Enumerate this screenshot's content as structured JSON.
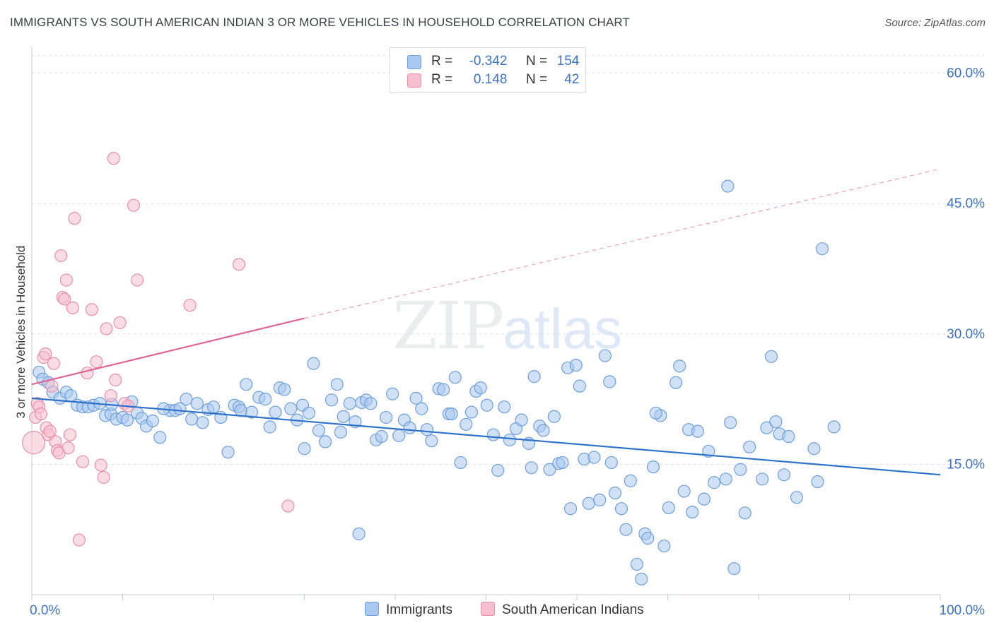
{
  "title": "IMMIGRANTS VS SOUTH AMERICAN INDIAN 3 OR MORE VEHICLES IN HOUSEHOLD CORRELATION CHART",
  "source": "Source: ZipAtlas.com",
  "watermark": {
    "zip": "ZIP",
    "atlas": "atlas"
  },
  "colors": {
    "immigrants_fill": "#a9c8ef",
    "immigrants_stroke": "#6f9fdb",
    "immigrants_line": "#2f72c9",
    "sai_fill": "#f6bfd0",
    "sai_stroke": "#e98fab",
    "sai_line": "#e06592",
    "axis_text": "#3a73c9",
    "grid": "#dde1e6"
  },
  "legend": {
    "rows": [
      {
        "r_label": "R =",
        "r_value": "-0.342",
        "n_label": "N =",
        "n_value": "154"
      },
      {
        "r_label": "R =",
        "r_value": "0.148",
        "n_label": "N =",
        "n_value": "42"
      }
    ]
  },
  "bottom_legend": [
    "Immigrants",
    "South American Indians"
  ],
  "chart_data": {
    "type": "scatter",
    "title": "IMMIGRANTS VS SOUTH AMERICAN INDIAN 3 OR MORE VEHICLES IN HOUSEHOLD CORRELATION CHART",
    "xlabel": "",
    "ylabel": "3 or more Vehicles in Household",
    "xlim": [
      0,
      100
    ],
    "ylim": [
      0,
      62
    ],
    "x_tick_labels": [
      "0.0%",
      "100.0%"
    ],
    "y_ticks": [
      15,
      30,
      45,
      60
    ],
    "y_tick_labels": [
      "15.0%",
      "30.0%",
      "45.0%",
      "60.0%"
    ],
    "grid": true,
    "legend_position": "top-center",
    "series": [
      {
        "name": "Immigrants",
        "r": -0.342,
        "n": 154,
        "trend": {
          "x0": 0,
          "y0": 22.6,
          "x1": 100,
          "y1": 13.8
        },
        "points": [
          [
            0.8,
            25.6
          ],
          [
            1.2,
            24.8
          ],
          [
            1.8,
            24.4
          ],
          [
            2.3,
            23.3
          ],
          [
            3.1,
            22.6
          ],
          [
            3.8,
            23.3
          ],
          [
            4.3,
            22.9
          ],
          [
            5.0,
            21.8
          ],
          [
            5.6,
            21.6
          ],
          [
            6.2,
            21.6
          ],
          [
            6.8,
            21.8
          ],
          [
            7.5,
            22.0
          ],
          [
            8.1,
            20.6
          ],
          [
            8.7,
            20.8
          ],
          [
            9.3,
            20.2
          ],
          [
            10.0,
            20.4
          ],
          [
            11.0,
            22.2
          ],
          [
            11.6,
            20.9
          ],
          [
            12.1,
            20.3
          ],
          [
            12.6,
            19.4
          ],
          [
            13.3,
            20.0
          ],
          [
            14.1,
            18.1
          ],
          [
            15.2,
            21.2
          ],
          [
            15.8,
            21.2
          ],
          [
            16.3,
            21.4
          ],
          [
            17.0,
            22.5
          ],
          [
            17.6,
            20.2
          ],
          [
            18.2,
            22.0
          ],
          [
            18.8,
            19.8
          ],
          [
            19.4,
            21.3
          ],
          [
            20.0,
            21.6
          ],
          [
            20.8,
            20.4
          ],
          [
            21.6,
            16.4
          ],
          [
            22.3,
            21.8
          ],
          [
            22.8,
            21.6
          ],
          [
            23.6,
            24.2
          ],
          [
            24.2,
            21.0
          ],
          [
            25.0,
            22.7
          ],
          [
            25.7,
            22.5
          ],
          [
            26.2,
            19.3
          ],
          [
            26.8,
            21.0
          ],
          [
            27.3,
            23.8
          ],
          [
            27.8,
            23.6
          ],
          [
            28.5,
            21.4
          ],
          [
            29.2,
            20.1
          ],
          [
            29.8,
            21.8
          ],
          [
            30.5,
            20.9
          ],
          [
            31.0,
            26.6
          ],
          [
            31.6,
            18.9
          ],
          [
            32.3,
            17.6
          ],
          [
            33.0,
            22.4
          ],
          [
            33.6,
            24.2
          ],
          [
            34.3,
            20.5
          ],
          [
            35.0,
            22.0
          ],
          [
            35.6,
            19.9
          ],
          [
            36.3,
            22.1
          ],
          [
            36.8,
            22.4
          ],
          [
            37.3,
            22.0
          ],
          [
            37.9,
            17.8
          ],
          [
            38.5,
            18.2
          ],
          [
            39.0,
            20.4
          ],
          [
            39.7,
            23.1
          ],
          [
            40.4,
            18.3
          ],
          [
            41.0,
            20.1
          ],
          [
            41.6,
            19.2
          ],
          [
            42.3,
            22.6
          ],
          [
            42.9,
            21.4
          ],
          [
            43.5,
            19.0
          ],
          [
            44.0,
            17.7
          ],
          [
            44.8,
            23.7
          ],
          [
            45.3,
            23.6
          ],
          [
            45.9,
            20.8
          ],
          [
            46.6,
            25.0
          ],
          [
            47.2,
            15.2
          ],
          [
            47.8,
            19.6
          ],
          [
            48.4,
            21.0
          ],
          [
            48.9,
            23.4
          ],
          [
            49.4,
            23.8
          ],
          [
            50.1,
            21.8
          ],
          [
            50.8,
            18.4
          ],
          [
            51.3,
            14.3
          ],
          [
            52.0,
            21.6
          ],
          [
            52.6,
            17.8
          ],
          [
            53.3,
            19.1
          ],
          [
            53.9,
            20.1
          ],
          [
            54.7,
            17.4
          ],
          [
            55.3,
            25.1
          ],
          [
            55.9,
            19.4
          ],
          [
            56.3,
            18.9
          ],
          [
            57.0,
            14.4
          ],
          [
            57.5,
            20.5
          ],
          [
            58.0,
            15.1
          ],
          [
            58.4,
            15.2
          ],
          [
            59.0,
            26.1
          ],
          [
            59.3,
            9.9
          ],
          [
            59.9,
            26.4
          ],
          [
            60.3,
            24.0
          ],
          [
            60.8,
            15.6
          ],
          [
            61.3,
            10.5
          ],
          [
            61.9,
            15.8
          ],
          [
            62.5,
            10.9
          ],
          [
            63.1,
            27.5
          ],
          [
            63.6,
            24.5
          ],
          [
            64.2,
            11.7
          ],
          [
            64.9,
            9.9
          ],
          [
            65.4,
            7.5
          ],
          [
            65.9,
            13.1
          ],
          [
            66.6,
            3.5
          ],
          [
            67.1,
            1.8
          ],
          [
            67.5,
            7.0
          ],
          [
            67.8,
            6.5
          ],
          [
            68.4,
            14.7
          ],
          [
            69.2,
            20.6
          ],
          [
            69.6,
            5.6
          ],
          [
            70.1,
            10.0
          ],
          [
            70.9,
            24.4
          ],
          [
            71.3,
            26.3
          ],
          [
            71.8,
            11.9
          ],
          [
            72.3,
            19.0
          ],
          [
            72.7,
            9.5
          ],
          [
            73.3,
            18.8
          ],
          [
            74.0,
            11.0
          ],
          [
            74.5,
            16.5
          ],
          [
            75.1,
            12.9
          ],
          [
            76.4,
            13.3
          ],
          [
            76.9,
            19.8
          ],
          [
            77.3,
            3.0
          ],
          [
            78.0,
            14.4
          ],
          [
            78.5,
            9.4
          ],
          [
            79.0,
            17.0
          ],
          [
            80.4,
            13.3
          ],
          [
            80.9,
            19.2
          ],
          [
            81.4,
            27.4
          ],
          [
            81.9,
            19.9
          ],
          [
            82.3,
            18.5
          ],
          [
            82.8,
            13.8
          ],
          [
            83.3,
            18.2
          ],
          [
            84.2,
            11.2
          ],
          [
            76.6,
            47.0
          ],
          [
            86.1,
            16.8
          ],
          [
            86.5,
            13.0
          ],
          [
            87.0,
            39.8
          ],
          [
            88.3,
            19.3
          ],
          [
            8.8,
            21.9
          ],
          [
            10.5,
            20.1
          ],
          [
            14.5,
            21.4
          ],
          [
            23.0,
            21.2
          ],
          [
            34.0,
            18.7
          ],
          [
            46.2,
            20.8
          ],
          [
            55.0,
            14.6
          ],
          [
            68.7,
            20.9
          ],
          [
            30.0,
            16.8
          ],
          [
            63.8,
            15.2
          ],
          [
            36.0,
            7.0
          ]
        ]
      },
      {
        "name": "South American Indians",
        "r": 0.148,
        "n": 42,
        "trend": {
          "x0": 0,
          "y0": 24.2,
          "x1": 30,
          "y1": 31.8,
          "dash_x1": 100,
          "dash_y1": 49.0
        },
        "points": [
          [
            0.2,
            17.5
          ],
          [
            0.4,
            20.4
          ],
          [
            0.6,
            22.0
          ],
          [
            0.8,
            21.6
          ],
          [
            1.0,
            20.8
          ],
          [
            1.3,
            27.3
          ],
          [
            1.5,
            27.7
          ],
          [
            1.6,
            19.2
          ],
          [
            1.8,
            18.4
          ],
          [
            2.0,
            18.8
          ],
          [
            2.2,
            24.0
          ],
          [
            2.4,
            26.6
          ],
          [
            2.6,
            17.6
          ],
          [
            2.8,
            16.6
          ],
          [
            3.0,
            16.3
          ],
          [
            3.2,
            39.0
          ],
          [
            3.4,
            34.2
          ],
          [
            3.6,
            34.0
          ],
          [
            3.8,
            36.2
          ],
          [
            4.0,
            16.9
          ],
          [
            4.2,
            18.4
          ],
          [
            4.5,
            33.0
          ],
          [
            4.7,
            43.3
          ],
          [
            5.2,
            6.3
          ],
          [
            5.6,
            15.3
          ],
          [
            6.1,
            25.5
          ],
          [
            6.6,
            32.8
          ],
          [
            7.1,
            26.8
          ],
          [
            7.6,
            14.9
          ],
          [
            7.9,
            13.5
          ],
          [
            8.2,
            30.6
          ],
          [
            8.7,
            22.9
          ],
          [
            9.0,
            50.2
          ],
          [
            9.2,
            24.7
          ],
          [
            9.7,
            31.3
          ],
          [
            10.2,
            22.0
          ],
          [
            10.6,
            21.7
          ],
          [
            11.2,
            44.8
          ],
          [
            11.6,
            36.2
          ],
          [
            17.4,
            33.3
          ],
          [
            22.8,
            38.0
          ],
          [
            28.2,
            10.2
          ]
        ]
      }
    ]
  }
}
